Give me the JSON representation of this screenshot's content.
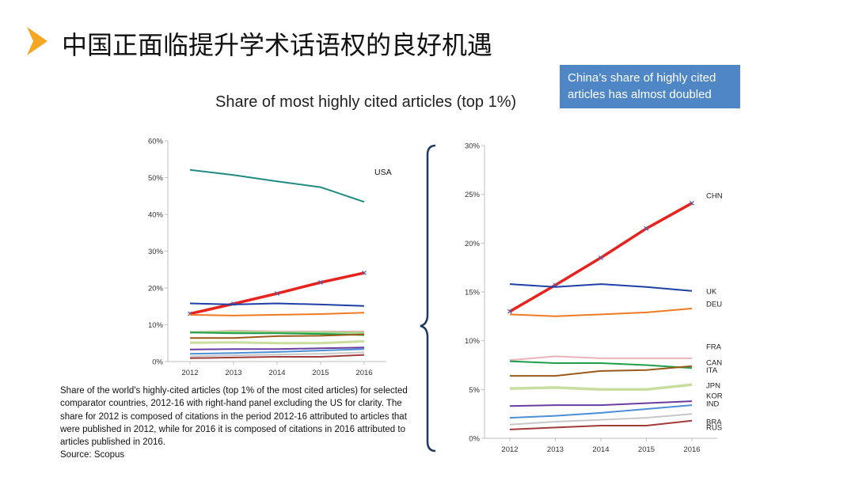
{
  "slide": {
    "title": "中国正面临提升学术话语权的良好机遇",
    "callout_text": "China’s share of highly cited articles has almost doubled",
    "caption_text": "Share of the world's highly-cited articles (top 1% of the most cited articles) for selected comparator countries, 2012-16 with right-hand panel excluding the US for clarity. The share for 2012 is composed of citations in the period 2012-16 attributed to articles that were published in 2012, while for 2016 it is composed of citations in 2016 attributed to articles published in 2016.",
    "source_text": "Source: Scopus",
    "colors": {
      "arrow": "#f5a623",
      "callout_bg": "#4e86c6"
    }
  },
  "chart_data": [
    {
      "type": "line",
      "title": "Share of most highly cited articles (top 1%)",
      "x": [
        "2012",
        "2013",
        "2014",
        "2015",
        "2016"
      ],
      "ylim": [
        0,
        60
      ],
      "yticks": [
        "0%",
        "10%",
        "20%",
        "30%",
        "40%",
        "50%",
        "60%"
      ],
      "grid": false,
      "series": [
        {
          "name": "USA",
          "color": "#1f8c82",
          "width": 2,
          "values": [
            52.1,
            50.7,
            49.0,
            47.4,
            43.4
          ]
        },
        {
          "name": "",
          "color": "#e8231e",
          "width": 3.5,
          "markers": true,
          "values": [
            13.0,
            15.7,
            18.5,
            21.5,
            24.1
          ]
        },
        {
          "name": "",
          "color": "#1f3fa6",
          "width": 2,
          "values": [
            15.8,
            15.5,
            15.8,
            15.5,
            15.1
          ]
        },
        {
          "name": "",
          "color": "#f07a22",
          "width": 2,
          "values": [
            12.7,
            12.5,
            12.7,
            12.9,
            13.3
          ]
        },
        {
          "name": "",
          "color": "#e8b4b8",
          "width": 2,
          "values": [
            8.0,
            8.4,
            8.2,
            8.2,
            8.2
          ]
        },
        {
          "name": "",
          "color": "#9fd88a",
          "width": 2.5,
          "values": [
            7.9,
            8.1,
            7.9,
            7.9,
            7.8
          ]
        },
        {
          "name": "",
          "color": "#1e9d4a",
          "width": 2,
          "values": [
            7.9,
            7.7,
            7.7,
            7.5,
            7.2
          ]
        },
        {
          "name": "",
          "color": "#9a5a1a",
          "width": 2,
          "values": [
            6.4,
            6.4,
            6.9,
            7.0,
            7.4
          ]
        },
        {
          "name": "",
          "color": "#c9dd9e",
          "width": 3,
          "values": [
            5.1,
            5.2,
            5.0,
            5.0,
            5.5
          ]
        },
        {
          "name": "",
          "color": "#6a3da0",
          "width": 2,
          "values": [
            3.3,
            3.4,
            3.4,
            3.6,
            3.8
          ]
        },
        {
          "name": "",
          "color": "#4d8fd6",
          "width": 2,
          "values": [
            2.1,
            2.3,
            2.6,
            3.0,
            3.4
          ]
        },
        {
          "name": "",
          "color": "#c8c8c8",
          "width": 2,
          "values": [
            1.4,
            1.7,
            1.9,
            2.1,
            2.5
          ]
        },
        {
          "name": "",
          "color": "#a33a3a",
          "width": 2,
          "values": [
            0.9,
            1.1,
            1.3,
            1.3,
            1.8
          ]
        }
      ]
    },
    {
      "type": "line",
      "x": [
        "2012",
        "2013",
        "2014",
        "2015",
        "2016"
      ],
      "ylim": [
        0,
        30
      ],
      "yticks": [
        "0%",
        "5%",
        "10%",
        "15%",
        "20%",
        "25%",
        "30%"
      ],
      "grid": false,
      "series": [
        {
          "name": "CHN",
          "color": "#e8231e",
          "width": 3.5,
          "markers": true,
          "values": [
            13.0,
            15.7,
            18.5,
            21.5,
            24.1
          ]
        },
        {
          "name": "UK",
          "color": "#1f3fa6",
          "width": 2,
          "values": [
            15.8,
            15.5,
            15.8,
            15.5,
            15.1
          ]
        },
        {
          "name": "DEU",
          "color": "#f07a22",
          "width": 2,
          "values": [
            12.7,
            12.5,
            12.7,
            12.9,
            13.3
          ]
        },
        {
          "name": "FRA",
          "color": "#e8b4b8",
          "width": 2,
          "values": [
            8.0,
            8.4,
            8.2,
            8.2,
            8.2
          ]
        },
        {
          "name": "CAN",
          "color": "#1e9d4a",
          "width": 2,
          "values": [
            7.9,
            7.7,
            7.7,
            7.5,
            7.2
          ]
        },
        {
          "name": "ITA",
          "color": "#9a5a1a",
          "width": 2,
          "values": [
            6.4,
            6.4,
            6.9,
            7.0,
            7.4
          ]
        },
        {
          "name": "JPN",
          "color": "#c9dd9e",
          "width": 3.5,
          "values": [
            5.1,
            5.2,
            5.0,
            5.0,
            5.5
          ]
        },
        {
          "name": "KOR",
          "color": "#6a3da0",
          "width": 2,
          "values": [
            3.3,
            3.4,
            3.4,
            3.6,
            3.8
          ]
        },
        {
          "name": "IND",
          "color": "#4d8fd6",
          "width": 2,
          "values": [
            2.1,
            2.3,
            2.6,
            3.0,
            3.4
          ]
        },
        {
          "name": "BRA",
          "color": "#c8c8c8",
          "width": 2,
          "values": [
            1.4,
            1.7,
            1.9,
            2.1,
            2.5
          ]
        },
        {
          "name": "RUS",
          "color": "#a33a3a",
          "width": 2,
          "values": [
            0.9,
            1.1,
            1.3,
            1.3,
            1.8
          ]
        }
      ]
    }
  ]
}
